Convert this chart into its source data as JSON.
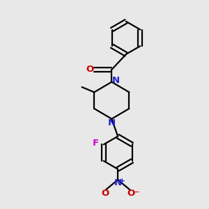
{
  "bg_color": "#e8e8e8",
  "bond_color": "#000000",
  "N_color": "#2222cc",
  "O_color": "#cc0000",
  "F_color": "#cc00cc",
  "lw": 1.6,
  "xlim": [
    0,
    10
  ],
  "ylim": [
    0,
    10
  ]
}
